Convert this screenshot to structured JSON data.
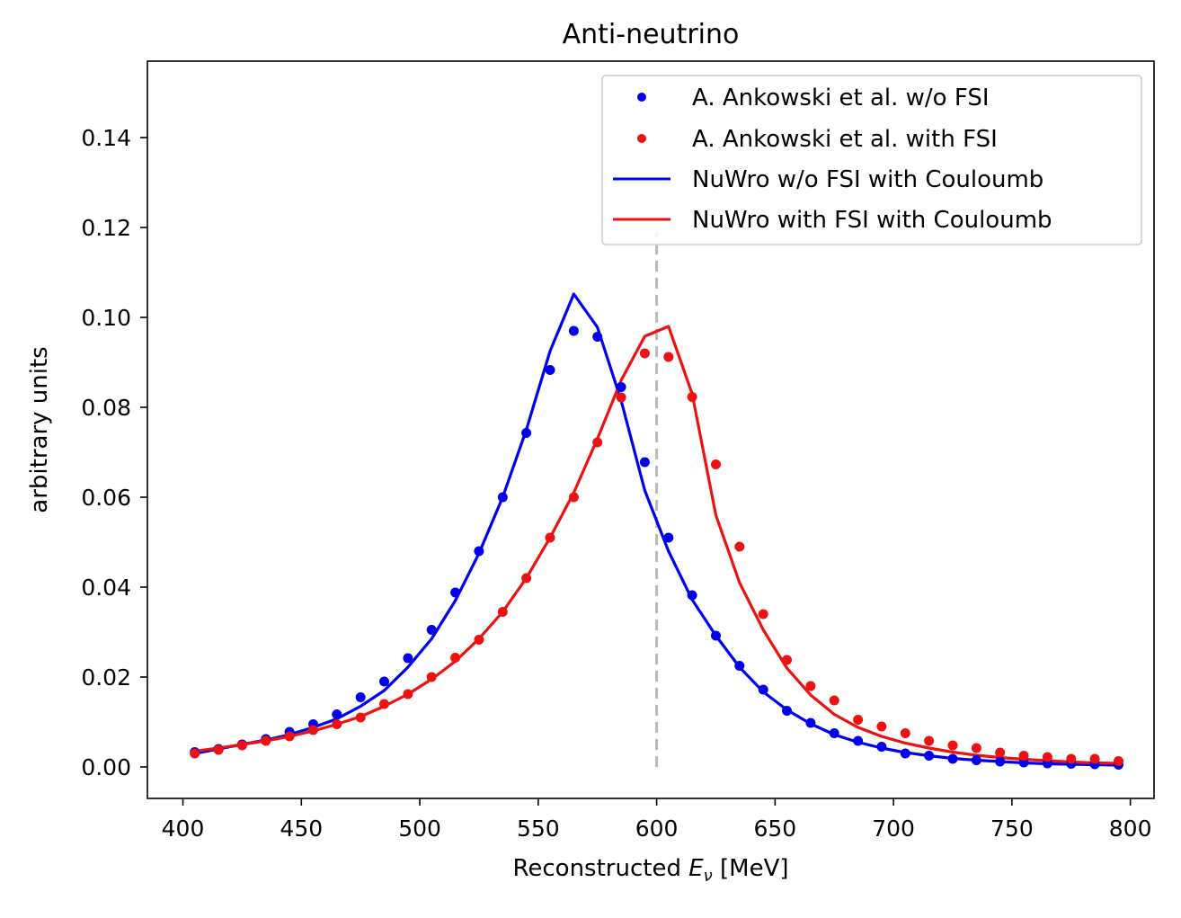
{
  "chart_data": {
    "type": "line",
    "title": "Anti-neutrino",
    "xlabel": {
      "prefix": "Reconstructed ",
      "symbol": "E",
      "subscript": "ν",
      "suffix": " [MeV]"
    },
    "ylabel": "arbitrary units",
    "xlim": [
      385,
      810
    ],
    "ylim": [
      -0.007,
      0.157
    ],
    "xticks": [
      400,
      450,
      500,
      550,
      600,
      650,
      700,
      750,
      800
    ],
    "yticks": [
      0.0,
      0.02,
      0.04,
      0.06,
      0.08,
      0.1,
      0.12,
      0.14
    ],
    "ytick_labels": [
      "0.00",
      "0.02",
      "0.04",
      "0.06",
      "0.08",
      "0.10",
      "0.12",
      "0.14"
    ],
    "grid": false,
    "legend_position": "top-right",
    "vline": {
      "x": 600,
      "style": "dashed",
      "color": "#bbbbbb"
    },
    "series": [
      {
        "name": "A. Ankowski et al. w/o FSI",
        "kind": "scatter",
        "color": "#0000ee",
        "x": [
          405,
          415,
          425,
          435,
          445,
          455,
          465,
          475,
          485,
          495,
          505,
          515,
          525,
          535,
          545,
          555,
          565,
          575,
          585,
          595,
          605,
          615,
          625,
          635,
          645,
          655,
          665,
          675,
          685,
          695,
          705,
          715,
          725,
          735,
          745,
          755,
          765,
          775,
          785,
          795
        ],
        "y": [
          0.0033,
          0.004,
          0.005,
          0.0062,
          0.0078,
          0.0095,
          0.0117,
          0.0155,
          0.019,
          0.0242,
          0.0305,
          0.0388,
          0.048,
          0.06,
          0.0743,
          0.0883,
          0.097,
          0.0957,
          0.0845,
          0.0678,
          0.051,
          0.0382,
          0.0292,
          0.0225,
          0.0172,
          0.0125,
          0.0098,
          0.0075,
          0.0058,
          0.0045,
          0.003,
          0.0025,
          0.0018,
          0.0015,
          0.0012,
          0.001,
          0.0008,
          0.0007,
          0.0006,
          0.0005
        ]
      },
      {
        "name": "A. Ankowski et al. with FSI",
        "kind": "scatter",
        "color": "#ee1111",
        "x": [
          405,
          415,
          425,
          435,
          445,
          455,
          465,
          475,
          485,
          495,
          505,
          515,
          525,
          535,
          545,
          555,
          565,
          575,
          585,
          595,
          605,
          615,
          625,
          635,
          645,
          655,
          665,
          675,
          685,
          695,
          705,
          715,
          725,
          735,
          745,
          755,
          765,
          775,
          785,
          795
        ],
        "y": [
          0.003,
          0.0038,
          0.0048,
          0.0058,
          0.0068,
          0.0082,
          0.0095,
          0.011,
          0.014,
          0.0162,
          0.02,
          0.0243,
          0.0283,
          0.0345,
          0.042,
          0.051,
          0.06,
          0.0722,
          0.0822,
          0.092,
          0.0912,
          0.0823,
          0.0673,
          0.049,
          0.034,
          0.0238,
          0.018,
          0.0148,
          0.0105,
          0.009,
          0.0075,
          0.0058,
          0.0048,
          0.0042,
          0.0032,
          0.0025,
          0.0022,
          0.0018,
          0.0018,
          0.0013
        ]
      },
      {
        "name": "NuWro w/o FSI with Couloumb",
        "kind": "line",
        "color": "#0000ee",
        "x": [
          405,
          415,
          425,
          435,
          445,
          455,
          465,
          475,
          485,
          495,
          505,
          515,
          525,
          535,
          545,
          555,
          565,
          575,
          585,
          595,
          605,
          615,
          625,
          635,
          645,
          655,
          665,
          675,
          685,
          695,
          705,
          715,
          725,
          735,
          745,
          755,
          765,
          775,
          785,
          795
        ],
        "y": [
          0.003,
          0.004,
          0.005,
          0.006,
          0.0072,
          0.0088,
          0.0107,
          0.0135,
          0.017,
          0.0222,
          0.0285,
          0.037,
          0.0475,
          0.06,
          0.075,
          0.0925,
          0.1052,
          0.0978,
          0.0815,
          0.0615,
          0.048,
          0.0372,
          0.0292,
          0.0222,
          0.0167,
          0.0127,
          0.0096,
          0.0072,
          0.0055,
          0.0042,
          0.0032,
          0.0025,
          0.0019,
          0.0015,
          0.0012,
          0.0009,
          0.0007,
          0.0006,
          0.0005,
          0.0004
        ]
      },
      {
        "name": "NuWro with FSI with Couloumb",
        "kind": "line",
        "color": "#ee1111",
        "x": [
          405,
          415,
          425,
          435,
          445,
          455,
          465,
          475,
          485,
          495,
          505,
          515,
          525,
          535,
          545,
          555,
          565,
          575,
          585,
          595,
          605,
          615,
          625,
          635,
          645,
          655,
          665,
          675,
          685,
          695,
          705,
          715,
          725,
          735,
          745,
          755,
          765,
          775,
          785,
          795
        ],
        "y": [
          0.0035,
          0.0042,
          0.005,
          0.0058,
          0.0068,
          0.008,
          0.0095,
          0.0112,
          0.0135,
          0.0162,
          0.0195,
          0.0235,
          0.0285,
          0.0345,
          0.042,
          0.051,
          0.061,
          0.073,
          0.086,
          0.0958,
          0.098,
          0.083,
          0.056,
          0.041,
          0.0305,
          0.022,
          0.016,
          0.0117,
          0.0088,
          0.0068,
          0.0053,
          0.0042,
          0.0033,
          0.0026,
          0.0021,
          0.0017,
          0.0014,
          0.0011,
          0.0009,
          0.0008
        ]
      }
    ]
  }
}
